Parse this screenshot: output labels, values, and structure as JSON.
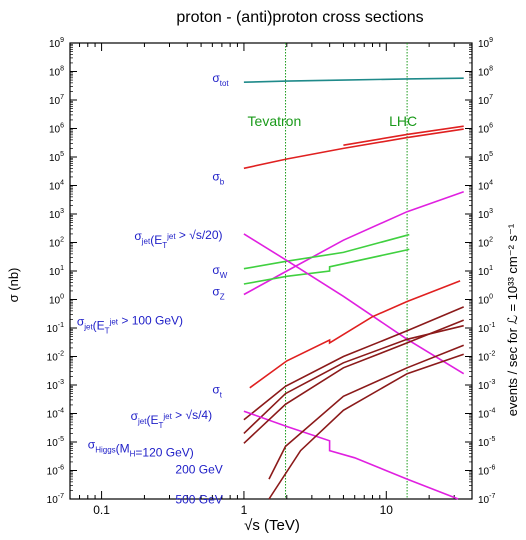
{
  "chart_data": {
    "type": "line",
    "title": "proton - (anti)proton cross sections",
    "xlabel": "√s (TeV)",
    "ylabel": "σ (nb)",
    "ylabel_right": "events / sec for ℒ = 10³³ cm⁻² s⁻¹",
    "x_scale": "log",
    "y_scale": "log",
    "xlim": [
      0.06,
      40
    ],
    "ylim": [
      1e-07,
      1000000000.0
    ],
    "ylim_right": [
      1e-07,
      1000000000.0
    ],
    "x_ticks": [
      0.1,
      1,
      10
    ],
    "x_tick_labels": [
      "0.1",
      "1",
      "10"
    ],
    "y_tick_exponents": [
      -7,
      -6,
      -5,
      -4,
      -3,
      -2,
      -1,
      0,
      1,
      2,
      3,
      4,
      5,
      6,
      7,
      8,
      9
    ],
    "grid": false,
    "reference_lines": [
      {
        "name": "Tevatron",
        "x": 1.96,
        "color": "#1a9a1a"
      },
      {
        "name": "LHC",
        "x": 14,
        "color": "#1a9a1a"
      }
    ],
    "series": [
      {
        "name": "σtot",
        "color": "#1f8a8a",
        "x": [
          1,
          2,
          5,
          14,
          35
        ],
        "y": [
          42000000.0,
          46000000.0,
          50000000.0,
          55000000.0,
          58000000.0
        ]
      },
      {
        "name": "σb",
        "color": "#e02020",
        "x": [
          1,
          2,
          5,
          14,
          35
        ],
        "y": [
          40000.0,
          85000.0,
          200000.0,
          480000.0,
          950000.0
        ]
      },
      {
        "name": "σb (upper)",
        "color": "#e02020",
        "x": [
          5,
          14,
          35
        ],
        "y": [
          260000.0,
          620000.0,
          1200000.0
        ]
      },
      {
        "name": "σjet(ETjet > √s/20)",
        "color": "#e020e0",
        "x": [
          1,
          2,
          5,
          14,
          35
        ],
        "y": [
          1.5,
          10,
          120,
          1200.0,
          6000.0
        ]
      },
      {
        "name": "σW",
        "color": "#40d040",
        "x": [
          1,
          2,
          5,
          14,
          14.5
        ],
        "y": [
          12,
          22,
          45,
          180,
          190
        ]
      },
      {
        "name": "σZ",
        "color": "#40d040",
        "x": [
          1,
          2,
          4,
          4,
          14,
          14.5
        ],
        "y": [
          3.5,
          6.5,
          10,
          14,
          55,
          58
        ]
      },
      {
        "name": "σjet(ETjet > 100 GeV)",
        "color": "#e020e0",
        "x": [
          1,
          1.96,
          5,
          14,
          35
        ],
        "y": [
          200,
          25,
          1.3,
          0.04,
          0.0025
        ]
      },
      {
        "name": "σt",
        "color": "#e02020",
        "x": [
          1.1,
          2,
          4,
          4,
          8,
          14,
          33
        ],
        "y": [
          0.0008,
          0.007,
          0.038,
          0.03,
          0.25,
          0.85,
          4.5
        ]
      },
      {
        "name": "σjet(ETjet > √s/4)",
        "color": "#8b1a1a",
        "x": [
          1,
          1.96,
          5,
          14,
          35
        ],
        "y": [
          2e-05,
          0.0005,
          0.006,
          0.04,
          0.12
        ]
      },
      {
        "name": "σjet(ETjet > √s/4) (2)",
        "color": "#8b1a1a",
        "x": [
          1,
          1.96,
          5,
          14,
          35
        ],
        "y": [
          6e-05,
          0.0009,
          0.01,
          0.08,
          0.55
        ]
      },
      {
        "name": "σHiggs(MH=120 GeV)",
        "color": "#e020e0",
        "x": [
          1,
          2,
          4,
          4,
          6,
          14,
          32
        ],
        "y": [
          0.00012,
          3.5e-05,
          1.1e-05,
          5e-06,
          2.8e-06,
          5e-07,
          1e-07
        ]
      },
      {
        "name": "200 GeV",
        "color": "#8b1a1a",
        "x": [
          1,
          1.96,
          5,
          14,
          35
        ],
        "y": [
          9e-06,
          0.00021,
          0.004,
          0.03,
          0.19
        ]
      },
      {
        "name": "500 GeV",
        "color": "#8b1a1a",
        "x": [
          1.5,
          1.96,
          5,
          14,
          35
        ],
        "y": [
          5e-07,
          7e-06,
          0.0004,
          0.004,
          0.025
        ]
      },
      {
        "name": "500 GeV (2)",
        "color": "#8b1a1a",
        "x": [
          1.5,
          2.5,
          5,
          14,
          35
        ],
        "y": [
          1e-07,
          5e-06,
          0.00013,
          0.0025,
          0.012
        ]
      }
    ],
    "annotations": [
      {
        "series": "σtot",
        "label": "σ",
        "sub": "tot",
        "x": 0.6,
        "y": 42000000.0
      },
      {
        "series": "σb",
        "label": "σ",
        "sub": "b",
        "x": 0.6,
        "y": 15000.0
      },
      {
        "label": "σ",
        "sub": "jet",
        "suffix": "(E",
        "sub2": "T",
        "sup": "jet",
        "tail": " > √s/20)",
        "x": 0.17,
        "y": 120
      },
      {
        "label": "σ",
        "sub": "W",
        "x": 0.6,
        "y": 8
      },
      {
        "label": "σ",
        "sub": "Z",
        "x": 0.6,
        "y": 1.4
      },
      {
        "label": "σ",
        "sub": "jet",
        "suffix": "(E",
        "sub2": "T",
        "sup": "jet",
        "tail": " > 100 GeV)",
        "x": 0.067,
        "y": 0.12
      },
      {
        "label": "σ",
        "sub": "t",
        "x": 0.6,
        "y": 0.0005
      },
      {
        "label": "σ",
        "sub": "jet",
        "suffix": "(E",
        "sub2": "T",
        "sup": "jet",
        "tail": " > √s/4)",
        "x": 0.16,
        "y": 6e-05
      },
      {
        "label": "σ",
        "sub": "Higgs",
        "suffix": "(M",
        "sub2": "H",
        "tail": "=120 GeV)",
        "x": 0.08,
        "y": 6e-06
      },
      {
        "label": "200 GeV",
        "x": 0.33,
        "y": 8e-07
      },
      {
        "label": "500 GeV",
        "x": 0.33,
        "y": 7e-08
      }
    ]
  }
}
